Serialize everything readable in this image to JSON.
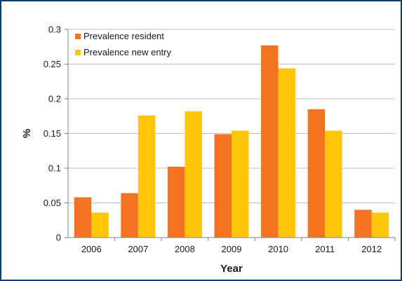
{
  "chart_data": {
    "type": "bar",
    "categories": [
      "2006",
      "2007",
      "2008",
      "2009",
      "2010",
      "2011",
      "2012"
    ],
    "series": [
      {
        "name": "Prevalence resident",
        "color": "#f47321",
        "values": [
          0.058,
          0.064,
          0.102,
          0.149,
          0.277,
          0.185,
          0.04
        ]
      },
      {
        "name": "Prevalence new entry",
        "color": "#ffc60a",
        "values": [
          0.036,
          0.176,
          0.182,
          0.154,
          0.244,
          0.154,
          0.036
        ]
      }
    ],
    "title": "",
    "xlabel": "Year",
    "ylabel": "%",
    "ylim": [
      0,
      0.3
    ],
    "yticks": [
      "0",
      "0.05",
      "0.1",
      "0.15",
      "0.2",
      "0.25",
      "0.3"
    ],
    "grid": true,
    "legend_position": "top-left"
  },
  "frame_color": "#0f3e6e"
}
